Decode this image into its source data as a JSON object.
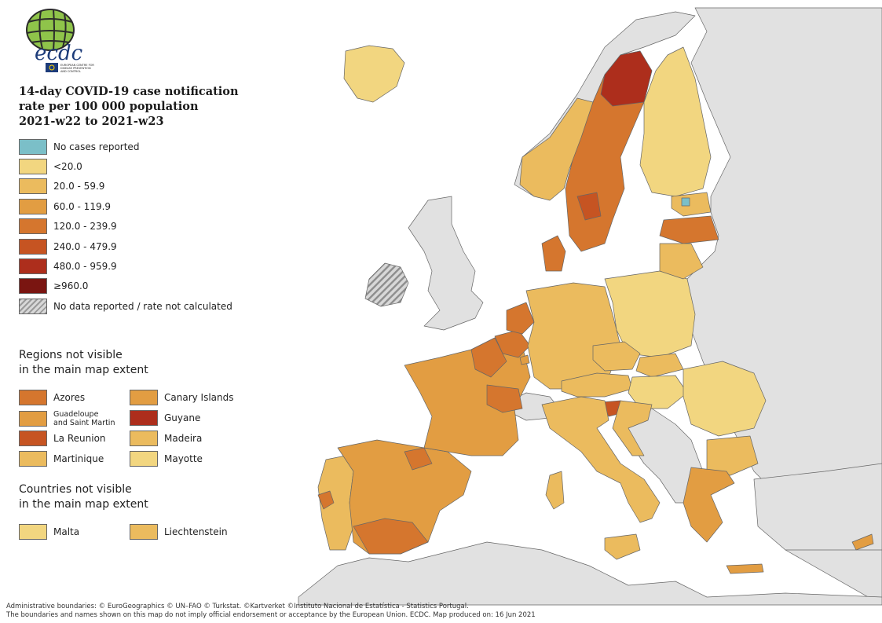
{
  "colors": {
    "sea": "#ffffff",
    "non_eu": "#e1e1e1",
    "no_cases": "#7bbfc8",
    "c0": "#f2d680",
    "c1": "#ebbb5e",
    "c2": "#e29d42",
    "c3": "#d5762e",
    "c4": "#c65422",
    "c5": "#ad2e1c",
    "c6": "#7a1511",
    "border": "#555555"
  },
  "logo": {
    "text": "ecdc",
    "subtext": "EUROPEAN CENTRE FOR DISEASE PREVENTION AND CONTROL"
  },
  "legend": {
    "title_line1": "14-day COVID-19 case notification",
    "title_line2": "rate per 100 000 population",
    "title_line3": "2021-w22 to 2021-w23",
    "scale": [
      {
        "label": "No cases reported",
        "color": "#7bbfc8"
      },
      {
        "label": "<20.0",
        "color": "#f2d680"
      },
      {
        "label": "20.0 - 59.9",
        "color": "#ebbb5e"
      },
      {
        "label": "60.0 - 119.9",
        "color": "#e29d42"
      },
      {
        "label": "120.0 - 239.9",
        "color": "#d5762e"
      },
      {
        "label": "240.0 - 479.9",
        "color": "#c65422"
      },
      {
        "label": "480.0 - 959.9",
        "color": "#ad2e1c"
      },
      {
        "label": "≥960.0",
        "color": "#7a1511"
      },
      {
        "label": "No data reported / rate not calculated",
        "color": "hatch"
      }
    ]
  },
  "regions_section": {
    "title_line1": "Regions not visible",
    "title_line2": "in the main map extent",
    "items": [
      {
        "label": "Azores",
        "color": "#d5762e"
      },
      {
        "label": "Canary Islands",
        "color": "#e29d42"
      },
      {
        "label": "Guadeloupe\nand Saint Martin",
        "color": "#e29d42"
      },
      {
        "label": "Guyane",
        "color": "#ad2e1c"
      },
      {
        "label": "La Reunion",
        "color": "#c65422"
      },
      {
        "label": "Madeira",
        "color": "#ebbb5e"
      },
      {
        "label": "Martinique",
        "color": "#ebbb5e"
      },
      {
        "label": "Mayotte",
        "color": "#f2d680"
      }
    ]
  },
  "countries_section": {
    "title_line1": "Countries not visible",
    "title_line2": "in the main map extent",
    "items": [
      {
        "label": "Malta",
        "color": "#f2d680"
      },
      {
        "label": "Liechtenstein",
        "color": "#ebbb5e"
      }
    ]
  },
  "footer": {
    "line1": "Administrative boundaries: © EuroGeographics © UN–FAO © Turkstat. ©Kartverket ©Instituto Nacional de Estatística - Statistics Portugal.",
    "line2": "The boundaries and names shown on this map do not imply official endorsement or acceptance by the European Union. ECDC. Map produced on: 16 Jun 2021"
  }
}
